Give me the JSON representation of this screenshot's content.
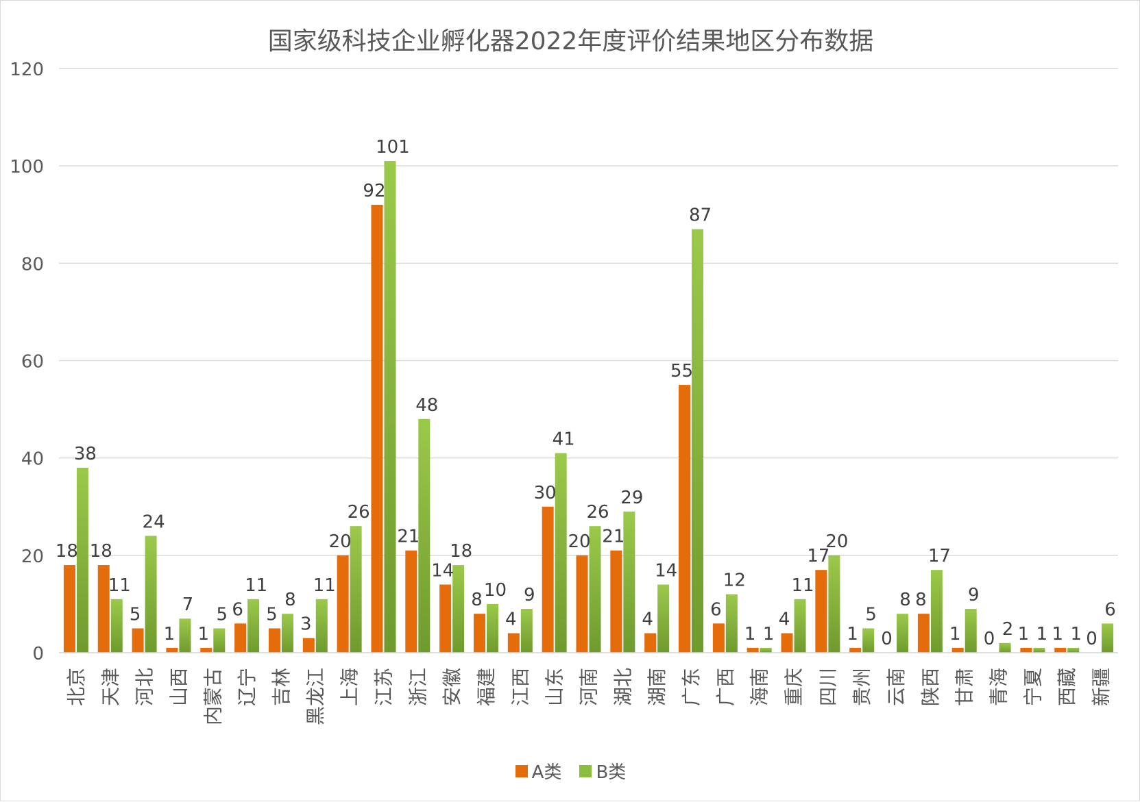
{
  "chart_data": {
    "type": "bar",
    "title": "国家级科技企业孵化器2022年度评价结果地区分布数据",
    "xlabel": "",
    "ylabel": "",
    "ylim": [
      0,
      120
    ],
    "yticks": [
      0,
      20,
      40,
      60,
      80,
      100,
      120
    ],
    "grid": true,
    "legend_position": "bottom",
    "categories": [
      "北京",
      "天津",
      "河北",
      "山西",
      "内蒙古",
      "辽宁",
      "吉林",
      "黑龙江",
      "上海",
      "江苏",
      "浙江",
      "安徽",
      "福建",
      "江西",
      "山东",
      "河南",
      "湖北",
      "湖南",
      "广东",
      "广西",
      "海南",
      "重庆",
      "四川",
      "贵州",
      "云南",
      "陕西",
      "甘肃",
      "青海",
      "宁夏",
      "西藏",
      "新疆"
    ],
    "series": [
      {
        "name": "A类",
        "color": "#e46c0a",
        "values": [
          18,
          18,
          5,
          1,
          1,
          6,
          5,
          3,
          20,
          92,
          21,
          14,
          8,
          4,
          30,
          20,
          21,
          4,
          55,
          6,
          1,
          4,
          17,
          1,
          0,
          8,
          1,
          0,
          1,
          1,
          0
        ]
      },
      {
        "name": "B类",
        "color": "#8cbd3f",
        "values": [
          38,
          11,
          24,
          7,
          5,
          11,
          8,
          11,
          26,
          101,
          48,
          18,
          10,
          9,
          41,
          26,
          29,
          14,
          87,
          12,
          1,
          11,
          20,
          5,
          8,
          17,
          9,
          2,
          1,
          1,
          6
        ]
      }
    ]
  }
}
